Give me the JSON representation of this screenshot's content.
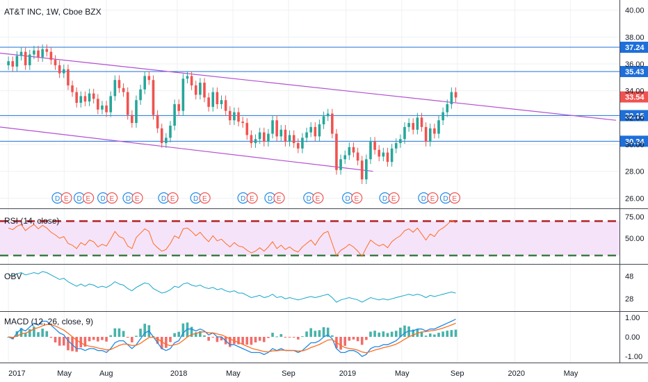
{
  "main": {
    "title": "AT&T INC, 1W, Cboe BZX",
    "y_ticks": [
      "40.00",
      "38.00",
      "36.00",
      "34.00",
      "32.00",
      "30.00",
      "28.00",
      "26.00"
    ],
    "price_badges": [
      {
        "label": "37.24",
        "color": "#1e6fd9"
      },
      {
        "label": "35.43",
        "color": "#1e6fd9"
      },
      {
        "label": "33.54",
        "color": "#ef5350"
      },
      {
        "label": "32.15",
        "color": "#1e6fd9"
      },
      {
        "label": "30.24",
        "color": "#1e6fd9"
      }
    ]
  },
  "events": [
    {
      "x": 2017.29,
      "labels": [
        "D",
        "E"
      ]
    },
    {
      "x": 2017.42,
      "labels": [
        "D",
        "E"
      ]
    },
    {
      "x": 2017.56,
      "labels": [
        "D",
        "E"
      ]
    },
    {
      "x": 2017.71,
      "labels": [
        "D",
        "E"
      ]
    },
    {
      "x": 2017.92,
      "labels": [
        "D",
        "E"
      ]
    },
    {
      "x": 2018.11,
      "labels": [
        "D",
        "E"
      ]
    },
    {
      "x": 2018.39,
      "labels": [
        "D",
        "E"
      ]
    },
    {
      "x": 2018.55,
      "labels": [
        "D",
        "E"
      ]
    },
    {
      "x": 2018.78,
      "labels": [
        "D",
        "E"
      ]
    },
    {
      "x": 2019.01,
      "labels": [
        "D",
        "E"
      ]
    },
    {
      "x": 2019.23,
      "labels": [
        "D",
        "E"
      ]
    },
    {
      "x": 2019.46,
      "labels": [
        "D",
        "E"
      ]
    },
    {
      "x": 2019.59,
      "labels": [
        "D",
        "E"
      ]
    }
  ],
  "rsi": {
    "label": "RSI (14, close)",
    "ticks": [
      "75.00",
      "50.00"
    ]
  },
  "obv": {
    "label": "OBV",
    "ticks": [
      "48",
      "28"
    ]
  },
  "macd": {
    "label": "MACD (12, 26, close, 9)",
    "ticks": [
      "1.00",
      "0.00",
      "-1.00"
    ]
  },
  "x_axis": {
    "labels": [
      "2017",
      "May",
      "Aug",
      "2018",
      "May",
      "Sep",
      "2019",
      "May",
      "Sep",
      "2020",
      "May"
    ]
  },
  "colors": {
    "up": "#26a69a",
    "down": "#ef5350",
    "hline": "#1e6fd9",
    "trend": "#b24fd1",
    "rsi": "#ff6d1f",
    "obv": "#13a5c9",
    "macd": "#1e88e5",
    "signal": "#ff6d1f",
    "rsi_fill": "#f5e3fa",
    "rsi_band": "#b22222",
    "rsi_mid": "#3a7d44"
  },
  "chart_data": {
    "type": "candlestick",
    "title": "AT&T INC, 1W, Cboe BZX",
    "ylim": [
      25.5,
      40.5
    ],
    "horizontal_levels": [
      37.24,
      35.43,
      32.15,
      30.24
    ],
    "last_price": 33.54,
    "trendlines": [
      {
        "from": [
          2016.95,
          36.8
        ],
        "to": [
          2020.6,
          31.8
        ]
      },
      {
        "from": [
          2016.95,
          31.3
        ],
        "to": [
          2019.16,
          28.0
        ]
      }
    ],
    "close": [
      36.2,
      35.8,
      36.6,
      36.9,
      35.9,
      36.7,
      37.0,
      36.5,
      37.1,
      36.9,
      36.3,
      35.9,
      35.3,
      35.6,
      34.4,
      33.9,
      33.1,
      33.6,
      33.2,
      33.8,
      33.4,
      32.6,
      32.9,
      32.4,
      33.6,
      34.8,
      34.2,
      33.9,
      32.2,
      31.6,
      33.3,
      34.1,
      35.1,
      34.8,
      32.2,
      31.2,
      30.1,
      30.5,
      31.4,
      33.0,
      32.5,
      34.9,
      35.1,
      34.4,
      33.7,
      34.6,
      33.5,
      32.8,
      33.9,
      33.0,
      33.3,
      32.5,
      31.8,
      32.4,
      31.7,
      31.6,
      30.7,
      30.1,
      30.4,
      30.9,
      30.2,
      30.8,
      31.8,
      30.6,
      31.1,
      30.2,
      30.7,
      30.1,
      29.7,
      30.5,
      30.9,
      31.3,
      30.6,
      31.5,
      32.1,
      32.3,
      30.8,
      28.1,
      28.9,
      29.2,
      29.8,
      29.4,
      28.8,
      27.4,
      28.9,
      30.2,
      29.6,
      29.1,
      29.4,
      28.7,
      29.7,
      30.1,
      30.4,
      31.3,
      31.6,
      31.1,
      32.0,
      31.3,
      30.2,
      31.2,
      30.8,
      31.8,
      32.4,
      33.0,
      33.9,
      33.5
    ],
    "rsi": [
      62,
      60,
      64,
      66,
      59,
      63,
      66,
      61,
      65,
      62,
      57,
      54,
      50,
      52,
      44,
      42,
      38,
      45,
      42,
      48,
      46,
      40,
      43,
      41,
      49,
      58,
      52,
      50,
      41,
      38,
      51,
      56,
      61,
      58,
      44,
      39,
      35,
      37,
      44,
      53,
      50,
      61,
      62,
      58,
      53,
      57,
      51,
      46,
      53,
      47,
      49,
      44,
      40,
      45,
      41,
      40,
      36,
      33,
      35,
      39,
      35,
      40,
      46,
      38,
      42,
      37,
      40,
      36,
      34,
      40,
      44,
      48,
      42,
      50,
      56,
      58,
      44,
      30,
      36,
      39,
      43,
      40,
      35,
      29,
      39,
      48,
      44,
      41,
      43,
      39,
      46,
      50,
      53,
      59,
      61,
      57,
      62,
      55,
      48,
      55,
      52,
      59,
      62,
      66,
      71,
      68
    ],
    "obv": [
      49,
      48,
      50,
      51,
      49,
      50,
      51,
      50,
      52,
      51,
      49,
      47,
      45,
      46,
      43,
      41,
      39,
      41,
      39,
      41,
      40,
      38,
      39,
      38,
      40,
      43,
      41,
      40,
      37,
      35,
      38,
      40,
      42,
      41,
      37,
      35,
      33,
      34,
      36,
      39,
      38,
      41,
      42,
      40,
      39,
      40,
      38,
      37,
      38,
      36,
      37,
      35,
      34,
      35,
      33,
      33,
      31,
      29,
      30,
      31,
      29,
      30,
      32,
      29,
      30,
      28,
      29,
      28,
      27,
      28,
      29,
      30,
      29,
      30,
      31,
      32,
      29,
      25,
      27,
      28,
      29,
      28,
      27,
      25,
      27,
      29,
      28,
      27,
      28,
      27,
      28,
      29,
      30,
      31,
      32,
      31,
      32,
      31,
      29,
      31,
      30,
      31,
      32,
      33,
      34,
      33
    ],
    "macd": [
      0.0,
      -0.1,
      0.2,
      0.4,
      0.3,
      0.5,
      0.7,
      0.6,
      0.8,
      0.8,
      0.6,
      0.4,
      0.2,
      0.1,
      -0.2,
      -0.4,
      -0.6,
      -0.6,
      -0.7,
      -0.6,
      -0.6,
      -0.7,
      -0.7,
      -0.8,
      -0.6,
      -0.3,
      -0.2,
      -0.2,
      -0.4,
      -0.6,
      -0.4,
      -0.1,
      0.2,
      0.3,
      0.0,
      -0.3,
      -0.6,
      -0.7,
      -0.6,
      -0.3,
      -0.2,
      0.2,
      0.4,
      0.4,
      0.3,
      0.4,
      0.3,
      0.1,
      0.2,
      0.0,
      0.0,
      -0.2,
      -0.4,
      -0.4,
      -0.5,
      -0.6,
      -0.7,
      -0.8,
      -0.8,
      -0.8,
      -0.9,
      -0.8,
      -0.6,
      -0.7,
      -0.6,
      -0.7,
      -0.7,
      -0.7,
      -0.8,
      -0.7,
      -0.5,
      -0.3,
      -0.3,
      -0.2,
      0.0,
      0.1,
      -0.1,
      -0.6,
      -0.8,
      -0.8,
      -0.7,
      -0.7,
      -0.8,
      -1.0,
      -0.9,
      -0.6,
      -0.5,
      -0.5,
      -0.4,
      -0.4,
      -0.3,
      -0.2,
      0.0,
      0.2,
      0.3,
      0.3,
      0.4,
      0.4,
      0.3,
      0.4,
      0.4,
      0.5,
      0.6,
      0.7,
      0.8,
      0.9
    ]
  }
}
